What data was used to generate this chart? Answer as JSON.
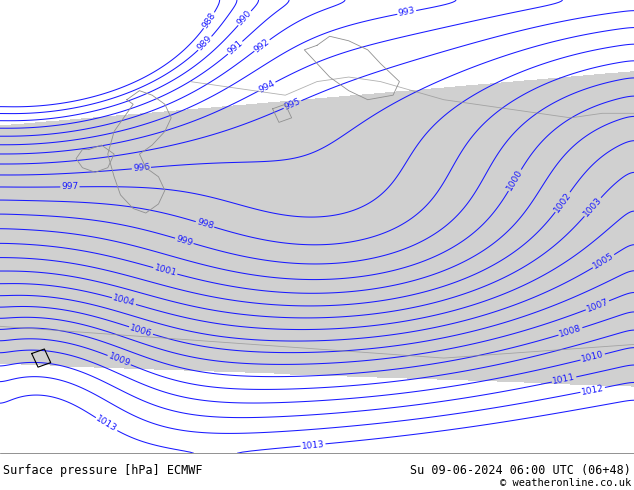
{
  "title_left": "Surface pressure [hPa] ECMWF",
  "title_right": "Su 09-06-2024 06:00 UTC (06+48)",
  "copyright": "© weatheronline.co.uk",
  "bg_color": "#b8e8a0",
  "gray_region_color": "#d0d0d0",
  "contour_color": "#1a1aff",
  "label_color": "#1a1aff",
  "border_color": "#909090",
  "footer_bg": "#ffffff",
  "footer_text_color": "#000000",
  "figsize": [
    6.34,
    4.9
  ],
  "dpi": 100
}
